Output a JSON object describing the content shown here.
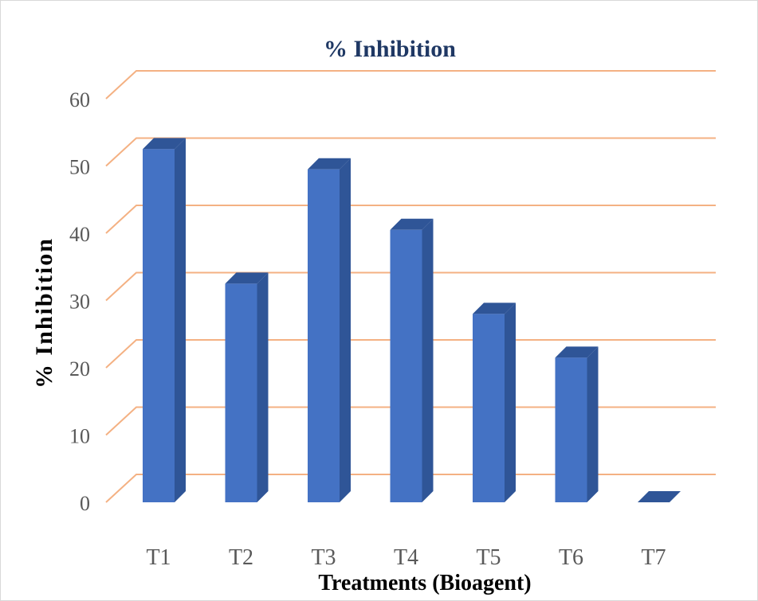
{
  "chart_data": {
    "type": "bar",
    "title": "% Inhibition",
    "xlabel": "Treatments (Bioagent)",
    "ylabel": "% Inhibition",
    "categories": [
      "T1",
      "T2",
      "T3",
      "T4",
      "T5",
      "T6",
      "T7"
    ],
    "values": [
      52.5,
      32.5,
      49.5,
      40.5,
      28,
      21.5,
      0
    ],
    "ylim": [
      0,
      60
    ],
    "yticks": [
      "0",
      "10",
      "20",
      "30",
      "40",
      "50",
      "60"
    ],
    "grid": true,
    "style": "3d-column"
  },
  "colors": {
    "bar_front": "#4472c4",
    "bar_side": "#2f5597",
    "bar_top": "#2f5597",
    "gridline": "#f4b183",
    "title": "#1f3864",
    "tick": "#595959"
  }
}
